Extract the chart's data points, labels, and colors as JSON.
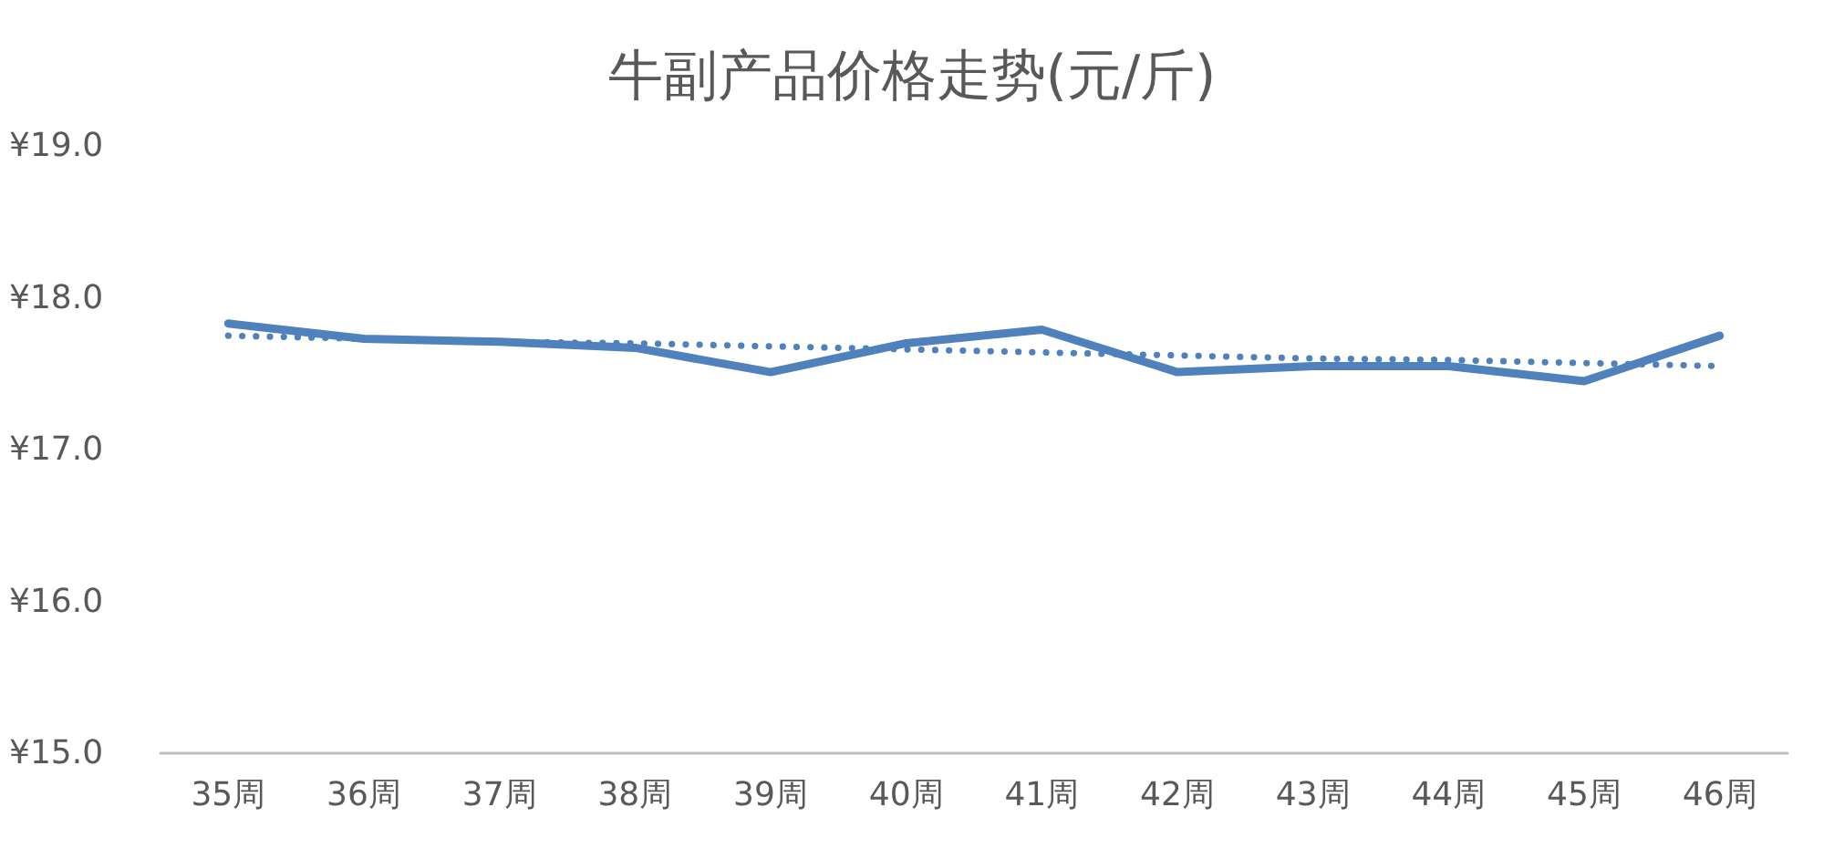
{
  "chart_data": {
    "type": "line",
    "title": "牛副产品价格走势(元/斤)",
    "categories": [
      "35周",
      "36周",
      "37周",
      "38周",
      "39周",
      "40周",
      "41周",
      "42周",
      "43周",
      "44周",
      "45周",
      "46周"
    ],
    "series": [
      {
        "color": "#4f81bd",
        "line_style": "solid",
        "values": [
          17.83,
          17.73,
          17.71,
          17.67,
          17.51,
          17.7,
          17.79,
          17.51,
          17.55,
          17.55,
          17.45,
          17.75
        ]
      },
      {
        "color": "#4f81bd",
        "line_style": "dotted",
        "values": [
          17.75,
          17.73,
          17.71,
          17.7,
          17.68,
          17.66,
          17.64,
          17.62,
          17.6,
          17.59,
          17.57,
          17.55
        ]
      }
    ],
    "ylim": [
      15,
      19
    ],
    "yticks": [
      {
        "value": 15,
        "label": "¥15.0"
      },
      {
        "value": 16,
        "label": "¥16.0"
      },
      {
        "value": 17,
        "label": "¥17.0"
      },
      {
        "value": 18,
        "label": "¥18.0"
      },
      {
        "value": 19,
        "label": "¥19.0"
      }
    ],
    "grid": false,
    "marker": "none"
  }
}
